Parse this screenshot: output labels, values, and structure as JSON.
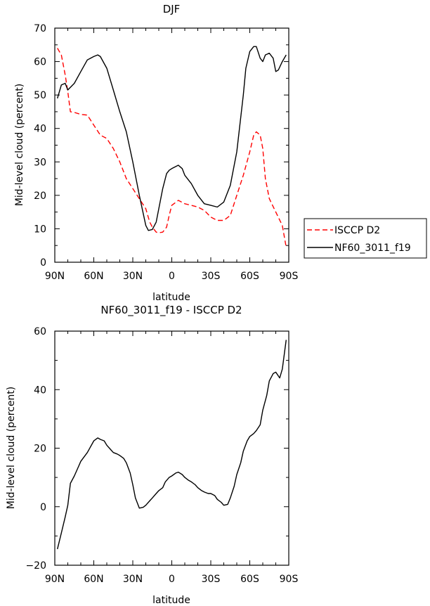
{
  "chart_data": [
    {
      "type": "line",
      "title": "DJF",
      "xlabel": "latitude",
      "ylabel": "Mid-level cloud (percent)",
      "xlim": [
        -90,
        90
      ],
      "ylim": [
        0,
        70
      ],
      "xticks": [
        -90,
        -60,
        -30,
        0,
        30,
        60,
        90
      ],
      "xticklabels": [
        "90N",
        "60N",
        "30N",
        "0",
        "30S",
        "60S",
        "90S"
      ],
      "yticks": [
        0,
        10,
        20,
        30,
        40,
        50,
        60,
        70
      ],
      "yticklabels": [
        "0",
        "10",
        "20",
        "30",
        "40",
        "50",
        "60",
        "70"
      ],
      "legend": "right",
      "series": [
        {
          "name": "ISCCP D2",
          "color": "#ff0000",
          "dash": "dashed",
          "x": [
            -88,
            -85,
            -82,
            -80,
            -78,
            -75,
            -70,
            -65,
            -60,
            -55,
            -50,
            -45,
            -40,
            -35,
            -30,
            -25,
            -20,
            -17,
            -15,
            -12,
            -10,
            -7,
            -4,
            -2,
            0,
            5,
            10,
            15,
            20,
            25,
            30,
            35,
            40,
            45,
            50,
            55,
            60,
            63,
            65,
            68,
            70,
            72,
            75,
            80,
            85,
            88
          ],
          "values": [
            64,
            62,
            56,
            51,
            45,
            44.8,
            44.2,
            44,
            41,
            38,
            37,
            34,
            30,
            25,
            22,
            19,
            16,
            12,
            10.5,
            9,
            8.8,
            9,
            10.5,
            14,
            17,
            18.5,
            17.5,
            17,
            16.5,
            15.5,
            13.5,
            12.5,
            12.5,
            14,
            20,
            26,
            33,
            38,
            39,
            38,
            34,
            25,
            19,
            15,
            11,
            4.5
          ]
        },
        {
          "name": "NF60_3011_f19",
          "color": "#000000",
          "dash": "solid",
          "x": [
            -88,
            -85,
            -82,
            -80,
            -75,
            -70,
            -65,
            -60,
            -57,
            -55,
            -50,
            -45,
            -40,
            -35,
            -30,
            -25,
            -20,
            -18,
            -15,
            -12,
            -10,
            -7,
            -4,
            -2,
            0,
            5,
            8,
            10,
            15,
            20,
            25,
            30,
            35,
            40,
            45,
            50,
            55,
            57,
            60,
            63,
            65,
            68,
            70,
            72,
            75,
            78,
            80,
            82,
            85,
            88
          ],
          "values": [
            49,
            53,
            53.5,
            51.5,
            53.5,
            57,
            60.5,
            61.5,
            62,
            61.5,
            58,
            51.5,
            45,
            39,
            30,
            20,
            11,
            9.5,
            9.8,
            12,
            16,
            22,
            26.5,
            27.5,
            28,
            29,
            28,
            26,
            23.5,
            20,
            17.5,
            17,
            16.5,
            18,
            23,
            33,
            50,
            58,
            63,
            64.5,
            64.5,
            61,
            60,
            62,
            62.5,
            61,
            57,
            57.5,
            60,
            62
          ]
        }
      ]
    },
    {
      "type": "line",
      "title": "NF60_3011_f19 - ISCCP D2",
      "xlabel": "latitude",
      "ylabel": "Mid-level cloud (percent)",
      "xlim": [
        -90,
        90
      ],
      "ylim": [
        -20,
        60
      ],
      "xticks": [
        -90,
        -60,
        -30,
        0,
        30,
        60,
        90
      ],
      "xticklabels": [
        "90N",
        "60N",
        "30N",
        "0",
        "30S",
        "60S",
        "90S"
      ],
      "yticks": [
        -20,
        0,
        20,
        40,
        60
      ],
      "yticklabels": [
        "−20",
        "0",
        "20",
        "40",
        "60"
      ],
      "series": [
        {
          "name": "NF60_3011_f19 - ISCCP D2",
          "color": "#000000",
          "dash": "solid",
          "x": [
            -88,
            -85,
            -82,
            -80,
            -78,
            -75,
            -72,
            -70,
            -65,
            -60,
            -57,
            -55,
            -52,
            -50,
            -47,
            -45,
            -42,
            -40,
            -37,
            -35,
            -32,
            -30,
            -28,
            -25,
            -22,
            -20,
            -17,
            -15,
            -12,
            -10,
            -7,
            -5,
            -2,
            0,
            3,
            5,
            8,
            10,
            13,
            15,
            18,
            20,
            23,
            25,
            28,
            30,
            33,
            35,
            38,
            40,
            43,
            45,
            48,
            50,
            53,
            55,
            58,
            60,
            63,
            65,
            68,
            70,
            73,
            75,
            78,
            80,
            83,
            85,
            88
          ],
          "values": [
            -14.5,
            -9,
            -3.5,
            0.5,
            8,
            10.5,
            13.5,
            15.5,
            18.5,
            22.5,
            23.5,
            23,
            22.5,
            21,
            19.5,
            18.5,
            18,
            17.5,
            16.5,
            15,
            11.5,
            7.5,
            3,
            -0.5,
            -0.2,
            0.5,
            2,
            3,
            4.5,
            5.5,
            6.5,
            8.5,
            10,
            10.5,
            11.5,
            11.8,
            11,
            10,
            9,
            8.5,
            7.5,
            6.5,
            5.5,
            5,
            4.5,
            4.5,
            3.8,
            2.5,
            1.5,
            0.5,
            0.8,
            3,
            7,
            11,
            15,
            19,
            22.5,
            24,
            25,
            26,
            28,
            33,
            38,
            43,
            45.5,
            46,
            44,
            47,
            57
          ]
        }
      ]
    }
  ]
}
